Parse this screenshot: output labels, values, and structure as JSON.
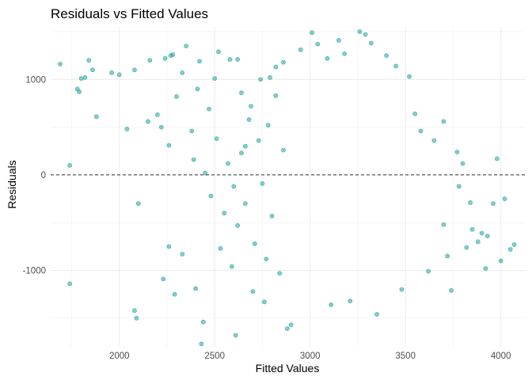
{
  "chart_data": {
    "type": "scatter",
    "title": "Residuals vs Fitted Values",
    "xlabel": "Fitted Values",
    "ylabel": "Residuals",
    "xlim": [
      1640,
      4130
    ],
    "ylim": [
      -1800,
      1550
    ],
    "xticks": [
      2000,
      2500,
      3000,
      3500,
      4000
    ],
    "yticks": [
      -1000,
      0,
      1000
    ],
    "reference_line": {
      "y": 0,
      "style": "dashed"
    },
    "grid": true,
    "legend": "none",
    "point_color": "#21a29a",
    "line_color": "#333333",
    "points": [
      [
        1690,
        1160
      ],
      [
        1740,
        100
      ],
      [
        1740,
        -1140
      ],
      [
        1780,
        900
      ],
      [
        1790,
        870
      ],
      [
        1800,
        1010
      ],
      [
        1820,
        1020
      ],
      [
        1840,
        1200
      ],
      [
        1860,
        1100
      ],
      [
        1880,
        610
      ],
      [
        1960,
        1070
      ],
      [
        2000,
        1050
      ],
      [
        2040,
        480
      ],
      [
        2080,
        1100
      ],
      [
        2100,
        -300
      ],
      [
        2080,
        -1420
      ],
      [
        2090,
        -1500
      ],
      [
        2150,
        560
      ],
      [
        2160,
        1200
      ],
      [
        2200,
        630
      ],
      [
        2220,
        500
      ],
      [
        2230,
        -1090
      ],
      [
        2240,
        1220
      ],
      [
        2260,
        310
      ],
      [
        2260,
        -750
      ],
      [
        2270,
        1250
      ],
      [
        2280,
        1260
      ],
      [
        2290,
        -1250
      ],
      [
        2300,
        820
      ],
      [
        2330,
        1070
      ],
      [
        2330,
        -830
      ],
      [
        2350,
        1350
      ],
      [
        2380,
        460
      ],
      [
        2390,
        160
      ],
      [
        2400,
        -1190
      ],
      [
        2410,
        900
      ],
      [
        2420,
        1190
      ],
      [
        2430,
        -1770
      ],
      [
        2440,
        -1540
      ],
      [
        2470,
        690
      ],
      [
        2500,
        1010
      ],
      [
        2520,
        1290
      ],
      [
        2530,
        -770
      ],
      [
        2580,
        1210
      ],
      [
        2590,
        -960
      ],
      [
        2610,
        -1680
      ],
      [
        2620,
        1210
      ],
      [
        2640,
        860
      ],
      [
        2660,
        300
      ],
      [
        2680,
        580
      ],
      [
        2700,
        -1220
      ],
      [
        2740,
        1000
      ],
      [
        2760,
        -1330
      ],
      [
        2790,
        1020
      ],
      [
        2820,
        1130
      ],
      [
        2860,
        1180
      ],
      [
        2880,
        -1610
      ],
      [
        2900,
        -1570
      ],
      [
        2950,
        1310
      ],
      [
        3010,
        1490
      ],
      [
        3040,
        1370
      ],
      [
        3090,
        1220
      ],
      [
        3110,
        -1360
      ],
      [
        3150,
        1410
      ],
      [
        3180,
        1270
      ],
      [
        3210,
        -1320
      ],
      [
        3260,
        1500
      ],
      [
        3290,
        1470
      ],
      [
        3320,
        1380
      ],
      [
        3350,
        -1460
      ],
      [
        3400,
        1250
      ],
      [
        3450,
        1140
      ],
      [
        3480,
        -1200
      ],
      [
        3520,
        1030
      ],
      [
        3550,
        640
      ],
      [
        3580,
        460
      ],
      [
        3620,
        -1010
      ],
      [
        3650,
        360
      ],
      [
        3700,
        560
      ],
      [
        3720,
        -850
      ],
      [
        3740,
        -1210
      ],
      [
        3770,
        240
      ],
      [
        3800,
        120
      ],
      [
        3820,
        -760
      ],
      [
        3850,
        -570
      ],
      [
        3880,
        -700
      ],
      [
        3900,
        -610
      ],
      [
        3920,
        -980
      ],
      [
        3960,
        -300
      ],
      [
        3980,
        170
      ],
      [
        4000,
        -900
      ],
      [
        4020,
        -250
      ],
      [
        4050,
        -780
      ],
      [
        4070,
        -730
      ],
      [
        3930,
        -640
      ],
      [
        3780,
        -120
      ],
      [
        3840,
        -290
      ],
      [
        3700,
        -520
      ],
      [
        2450,
        20
      ],
      [
        2480,
        -220
      ],
      [
        2510,
        380
      ],
      [
        2550,
        -400
      ],
      [
        2570,
        120
      ],
      [
        2600,
        -120
      ],
      [
        2620,
        -530
      ],
      [
        2640,
        230
      ],
      [
        2660,
        -300
      ],
      [
        2690,
        720
      ],
      [
        2710,
        -720
      ],
      [
        2730,
        360
      ],
      [
        2750,
        -90
      ],
      [
        2770,
        -880
      ],
      [
        2780,
        520
      ],
      [
        2800,
        -430
      ],
      [
        2820,
        830
      ],
      [
        2840,
        -1030
      ],
      [
        2860,
        260
      ]
    ]
  }
}
